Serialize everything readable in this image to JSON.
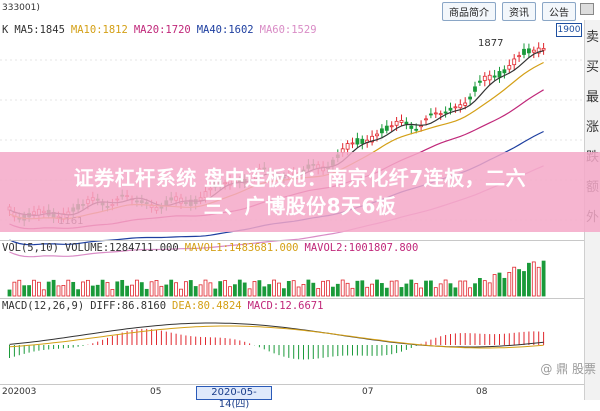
{
  "header": {
    "code_label": "333001)",
    "buttons": [
      "商品简介",
      "资讯",
      "公告"
    ],
    "chart_type_label": "K"
  },
  "ma_legend": [
    {
      "label": "MA5:1845",
      "color": "#333333"
    },
    {
      "label": "MA10:1812",
      "color": "#d4a017"
    },
    {
      "label": "MA20:1720",
      "color": "#c0287a"
    },
    {
      "label": "MA40:1602",
      "color": "#1e3fa0"
    },
    {
      "label": "MA60:1529",
      "color": "#d98cc6"
    }
  ],
  "price_tag": "1900",
  "high_label": "1877",
  "low_label": "1161",
  "right_sidebar": [
    "卖",
    "买",
    "最",
    "涨",
    "跌",
    "额",
    "外"
  ],
  "vol_legend": [
    {
      "label": "VOL(5,10)",
      "color": "#333333"
    },
    {
      "label": "VOLUME:1284711.000",
      "color": "#333333"
    },
    {
      "label": "MAVOL1:1483681.000",
      "color": "#d4a017"
    },
    {
      "label": "MAVOL2:1001807.800",
      "color": "#c0287a"
    }
  ],
  "macd_legend": [
    {
      "label": "MACD(12,26,9)",
      "color": "#333333"
    },
    {
      "label": "DIFF:86.8160",
      "color": "#333333"
    },
    {
      "label": "DEA:80.4824",
      "color": "#d4a017"
    },
    {
      "label": "MACD:12.6671",
      "color": "#c0287a"
    }
  ],
  "axis_labels": [
    "202003",
    "05",
    "07",
    "08"
  ],
  "selected_date": "2020-05-14(四)",
  "overlay": {
    "line1": "证券杠杆系统 盘中连板池：南京化纤7连板，二六",
    "line2": "三、广博股份8天6板"
  },
  "watermark": "@ 鼎 股票",
  "colors": {
    "up": "#e0262d",
    "down": "#1a9a3a",
    "ma5": "#333333",
    "ma10": "#d4a017",
    "ma20": "#c0287a",
    "ma40": "#1e3fa0",
    "ma60": "#d98cc6"
  }
}
